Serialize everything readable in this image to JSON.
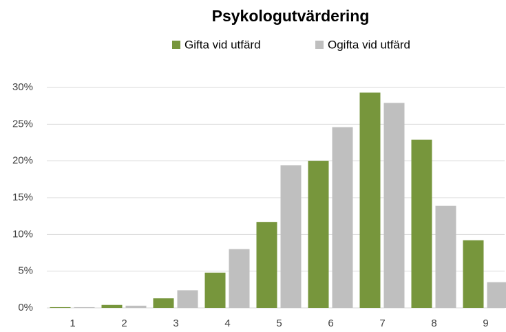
{
  "chart_data": {
    "type": "bar",
    "title": "Psykologutvärdering",
    "categories": [
      "1",
      "2",
      "3",
      "4",
      "5",
      "6",
      "7",
      "8",
      "9"
    ],
    "series": [
      {
        "name": "Gifta vid utfärd",
        "color": "#77963c",
        "values": [
          0.1,
          0.4,
          1.3,
          4.8,
          11.7,
          20.0,
          29.3,
          22.9,
          9.2
        ]
      },
      {
        "name": "Ogifta vid utfärd",
        "color": "#bfbfbf",
        "values": [
          0.1,
          0.3,
          2.4,
          8.0,
          19.4,
          24.6,
          27.9,
          13.9,
          3.5
        ]
      }
    ],
    "ylim": [
      0,
      30
    ],
    "yticks": [
      {
        "value": 0,
        "label": "0%"
      },
      {
        "value": 5,
        "label": "5%"
      },
      {
        "value": 10,
        "label": "10%"
      },
      {
        "value": 15,
        "label": "15%"
      },
      {
        "value": 20,
        "label": "20%"
      },
      {
        "value": 25,
        "label": "25%"
      },
      {
        "value": 30,
        "label": "30%"
      }
    ],
    "grid": true,
    "legend": "top"
  }
}
